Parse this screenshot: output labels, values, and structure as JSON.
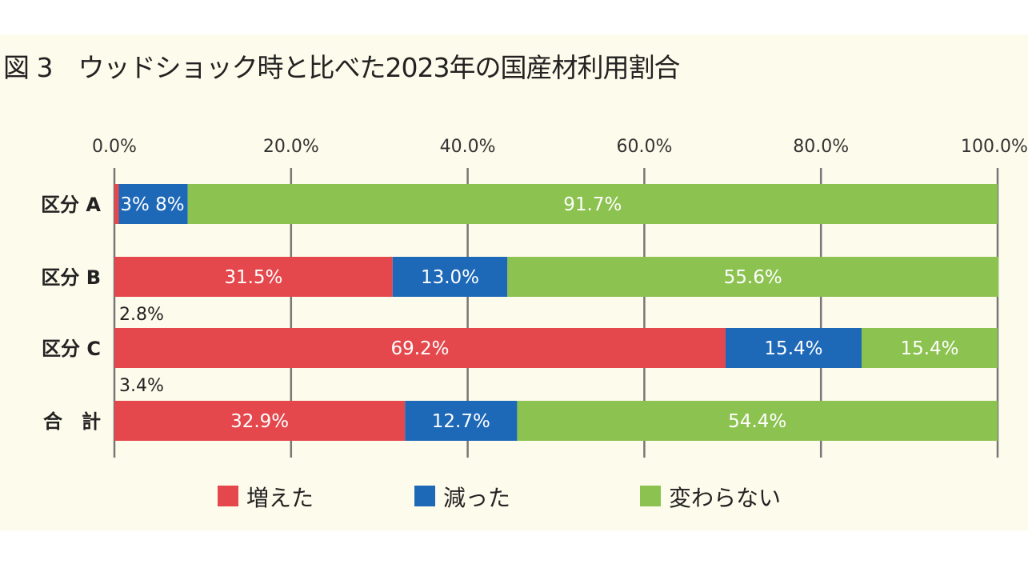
{
  "title": "図 3　ウッドショック時と比べた2023年の国産材利用割合",
  "chart_data": {
    "type": "bar",
    "orientation": "horizontal",
    "stacked": true,
    "title": "図 3　ウッドショック時と比べた2023年の国産材利用割合",
    "categories": [
      "区分A",
      "区分B",
      "区分C",
      "合　計"
    ],
    "category_labels": [
      "区分 A",
      "区分 B",
      "区分 C",
      "合　計"
    ],
    "xlim": [
      0,
      100
    ],
    "x_ticks": [
      "0.0%",
      "20.0%",
      "40.0%",
      "60.0%",
      "80.0%",
      "100.0%"
    ],
    "x_axis_position": "top",
    "grid": true,
    "legend_position": "bottom",
    "series": [
      {
        "name": "増えた",
        "color": "#e4484c",
        "values": [
          0.5,
          31.5,
          69.2,
          32.9
        ],
        "labels": [
          "",
          "31.5%",
          "69.2%",
          "32.9%"
        ]
      },
      {
        "name": "減った",
        "color": "#1e68b8",
        "values": [
          7.8,
          13.0,
          15.4,
          12.7
        ],
        "labels": [
          "3% 8%",
          "13.0%",
          "15.4%",
          "12.7%"
        ]
      },
      {
        "name": "変わらない",
        "color": "#8cc24f",
        "values": [
          91.7,
          55.6,
          15.4,
          54.4
        ],
        "labels": [
          "91.7%",
          "55.6%",
          "15.4%",
          "54.4%"
        ]
      }
    ],
    "annotations": [
      {
        "text": "2.8%",
        "below_category": "区分B"
      },
      {
        "text": "3.4%",
        "below_category": "区分C"
      }
    ]
  }
}
